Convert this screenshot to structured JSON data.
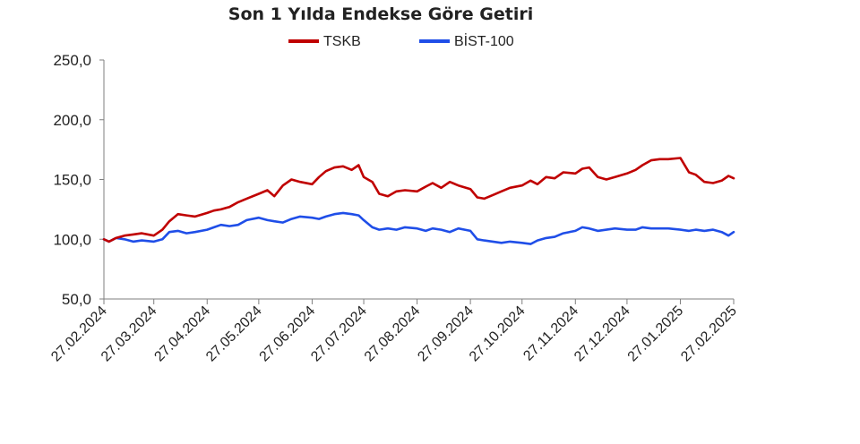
{
  "chart_data": {
    "type": "line",
    "title": "Son 1 Yılda Endekse Göre Getiri",
    "xlabel": "",
    "ylabel": "",
    "ylim": [
      50,
      250
    ],
    "y_ticks": [
      "50,0",
      "100,0",
      "150,0",
      "200,0",
      "250,0"
    ],
    "y_tick_values": [
      50,
      100,
      150,
      200,
      250
    ],
    "x_ticks": [
      "27.02.2024",
      "27.03.2024",
      "27.04.2024",
      "27.05.2024",
      "27.06.2024",
      "27.07.2024",
      "27.08.2024",
      "27.09.2024",
      "27.10.2024",
      "27.11.2024",
      "27.12.2024",
      "27.01.2025",
      "27.02.2025"
    ],
    "x_tick_dates": [
      "2024-02-27",
      "2024-03-27",
      "2024-04-27",
      "2024-05-27",
      "2024-06-27",
      "2024-07-27",
      "2024-08-27",
      "2024-09-27",
      "2024-10-27",
      "2024-11-27",
      "2024-12-27",
      "2025-01-27",
      "2025-02-27"
    ],
    "grid": false,
    "legend_position": "top-center",
    "series": [
      {
        "name": "TSKB",
        "color": "#c00000",
        "points": [
          [
            "2024-02-27",
            100
          ],
          [
            "2024-03-01",
            98
          ],
          [
            "2024-03-05",
            101
          ],
          [
            "2024-03-10",
            103
          ],
          [
            "2024-03-15",
            104
          ],
          [
            "2024-03-20",
            105
          ],
          [
            "2024-03-27",
            103
          ],
          [
            "2024-04-01",
            108
          ],
          [
            "2024-04-05",
            115
          ],
          [
            "2024-04-10",
            121
          ],
          [
            "2024-04-15",
            120
          ],
          [
            "2024-04-20",
            119
          ],
          [
            "2024-04-27",
            122
          ],
          [
            "2024-05-01",
            124
          ],
          [
            "2024-05-05",
            125
          ],
          [
            "2024-05-10",
            127
          ],
          [
            "2024-05-15",
            131
          ],
          [
            "2024-05-20",
            134
          ],
          [
            "2024-05-27",
            138
          ],
          [
            "2024-06-01",
            141
          ],
          [
            "2024-06-05",
            136
          ],
          [
            "2024-06-10",
            145
          ],
          [
            "2024-06-15",
            150
          ],
          [
            "2024-06-20",
            148
          ],
          [
            "2024-06-27",
            146
          ],
          [
            "2024-07-01",
            152
          ],
          [
            "2024-07-05",
            157
          ],
          [
            "2024-07-10",
            160
          ],
          [
            "2024-07-15",
            161
          ],
          [
            "2024-07-20",
            158
          ],
          [
            "2024-07-24",
            162
          ],
          [
            "2024-07-27",
            152
          ],
          [
            "2024-08-01",
            148
          ],
          [
            "2024-08-05",
            138
          ],
          [
            "2024-08-10",
            136
          ],
          [
            "2024-08-15",
            140
          ],
          [
            "2024-08-20",
            141
          ],
          [
            "2024-08-27",
            140
          ],
          [
            "2024-09-01",
            144
          ],
          [
            "2024-09-05",
            147
          ],
          [
            "2024-09-10",
            143
          ],
          [
            "2024-09-15",
            148
          ],
          [
            "2024-09-20",
            145
          ],
          [
            "2024-09-27",
            142
          ],
          [
            "2024-10-01",
            135
          ],
          [
            "2024-10-05",
            134
          ],
          [
            "2024-10-10",
            137
          ],
          [
            "2024-10-15",
            140
          ],
          [
            "2024-10-20",
            143
          ],
          [
            "2024-10-27",
            145
          ],
          [
            "2024-11-01",
            149
          ],
          [
            "2024-11-05",
            146
          ],
          [
            "2024-11-10",
            152
          ],
          [
            "2024-11-15",
            151
          ],
          [
            "2024-11-20",
            156
          ],
          [
            "2024-11-27",
            155
          ],
          [
            "2024-12-01",
            159
          ],
          [
            "2024-12-05",
            160
          ],
          [
            "2024-12-10",
            152
          ],
          [
            "2024-12-15",
            150
          ],
          [
            "2024-12-20",
            152
          ],
          [
            "2024-12-27",
            155
          ],
          [
            "2025-01-01",
            158
          ],
          [
            "2025-01-05",
            162
          ],
          [
            "2025-01-10",
            166
          ],
          [
            "2025-01-15",
            167
          ],
          [
            "2025-01-20",
            167
          ],
          [
            "2025-01-27",
            168
          ],
          [
            "2025-02-01",
            156
          ],
          [
            "2025-02-05",
            154
          ],
          [
            "2025-02-10",
            148
          ],
          [
            "2025-02-15",
            147
          ],
          [
            "2025-02-20",
            149
          ],
          [
            "2025-02-24",
            153
          ],
          [
            "2025-02-27",
            151
          ]
        ]
      },
      {
        "name": "BİST-100",
        "color": "#1f4ee8",
        "points": [
          [
            "2024-02-27",
            100
          ],
          [
            "2024-03-01",
            98
          ],
          [
            "2024-03-05",
            101
          ],
          [
            "2024-03-10",
            100
          ],
          [
            "2024-03-15",
            98
          ],
          [
            "2024-03-20",
            99
          ],
          [
            "2024-03-27",
            98
          ],
          [
            "2024-04-01",
            100
          ],
          [
            "2024-04-05",
            106
          ],
          [
            "2024-04-10",
            107
          ],
          [
            "2024-04-15",
            105
          ],
          [
            "2024-04-20",
            106
          ],
          [
            "2024-04-27",
            108
          ],
          [
            "2024-05-01",
            110
          ],
          [
            "2024-05-05",
            112
          ],
          [
            "2024-05-10",
            111
          ],
          [
            "2024-05-15",
            112
          ],
          [
            "2024-05-20",
            116
          ],
          [
            "2024-05-27",
            118
          ],
          [
            "2024-06-01",
            116
          ],
          [
            "2024-06-05",
            115
          ],
          [
            "2024-06-10",
            114
          ],
          [
            "2024-06-15",
            117
          ],
          [
            "2024-06-20",
            119
          ],
          [
            "2024-06-27",
            118
          ],
          [
            "2024-07-01",
            117
          ],
          [
            "2024-07-05",
            119
          ],
          [
            "2024-07-10",
            121
          ],
          [
            "2024-07-15",
            122
          ],
          [
            "2024-07-20",
            121
          ],
          [
            "2024-07-24",
            120
          ],
          [
            "2024-07-27",
            116
          ],
          [
            "2024-08-01",
            110
          ],
          [
            "2024-08-05",
            108
          ],
          [
            "2024-08-10",
            109
          ],
          [
            "2024-08-15",
            108
          ],
          [
            "2024-08-20",
            110
          ],
          [
            "2024-08-27",
            109
          ],
          [
            "2024-09-01",
            107
          ],
          [
            "2024-09-05",
            109
          ],
          [
            "2024-09-10",
            108
          ],
          [
            "2024-09-15",
            106
          ],
          [
            "2024-09-20",
            109
          ],
          [
            "2024-09-27",
            107
          ],
          [
            "2024-10-01",
            100
          ],
          [
            "2024-10-05",
            99
          ],
          [
            "2024-10-10",
            98
          ],
          [
            "2024-10-15",
            97
          ],
          [
            "2024-10-20",
            98
          ],
          [
            "2024-10-27",
            97
          ],
          [
            "2024-11-01",
            96
          ],
          [
            "2024-11-05",
            99
          ],
          [
            "2024-11-10",
            101
          ],
          [
            "2024-11-15",
            102
          ],
          [
            "2024-11-20",
            105
          ],
          [
            "2024-11-27",
            107
          ],
          [
            "2024-12-01",
            110
          ],
          [
            "2024-12-05",
            109
          ],
          [
            "2024-12-10",
            107
          ],
          [
            "2024-12-15",
            108
          ],
          [
            "2024-12-20",
            109
          ],
          [
            "2024-12-27",
            108
          ],
          [
            "2025-01-01",
            108
          ],
          [
            "2025-01-05",
            110
          ],
          [
            "2025-01-10",
            109
          ],
          [
            "2025-01-15",
            109
          ],
          [
            "2025-01-20",
            109
          ],
          [
            "2025-01-27",
            108
          ],
          [
            "2025-02-01",
            107
          ],
          [
            "2025-02-05",
            108
          ],
          [
            "2025-02-10",
            107
          ],
          [
            "2025-02-15",
            108
          ],
          [
            "2025-02-20",
            106
          ],
          [
            "2025-02-24",
            103
          ],
          [
            "2025-02-27",
            106
          ]
        ]
      }
    ]
  }
}
